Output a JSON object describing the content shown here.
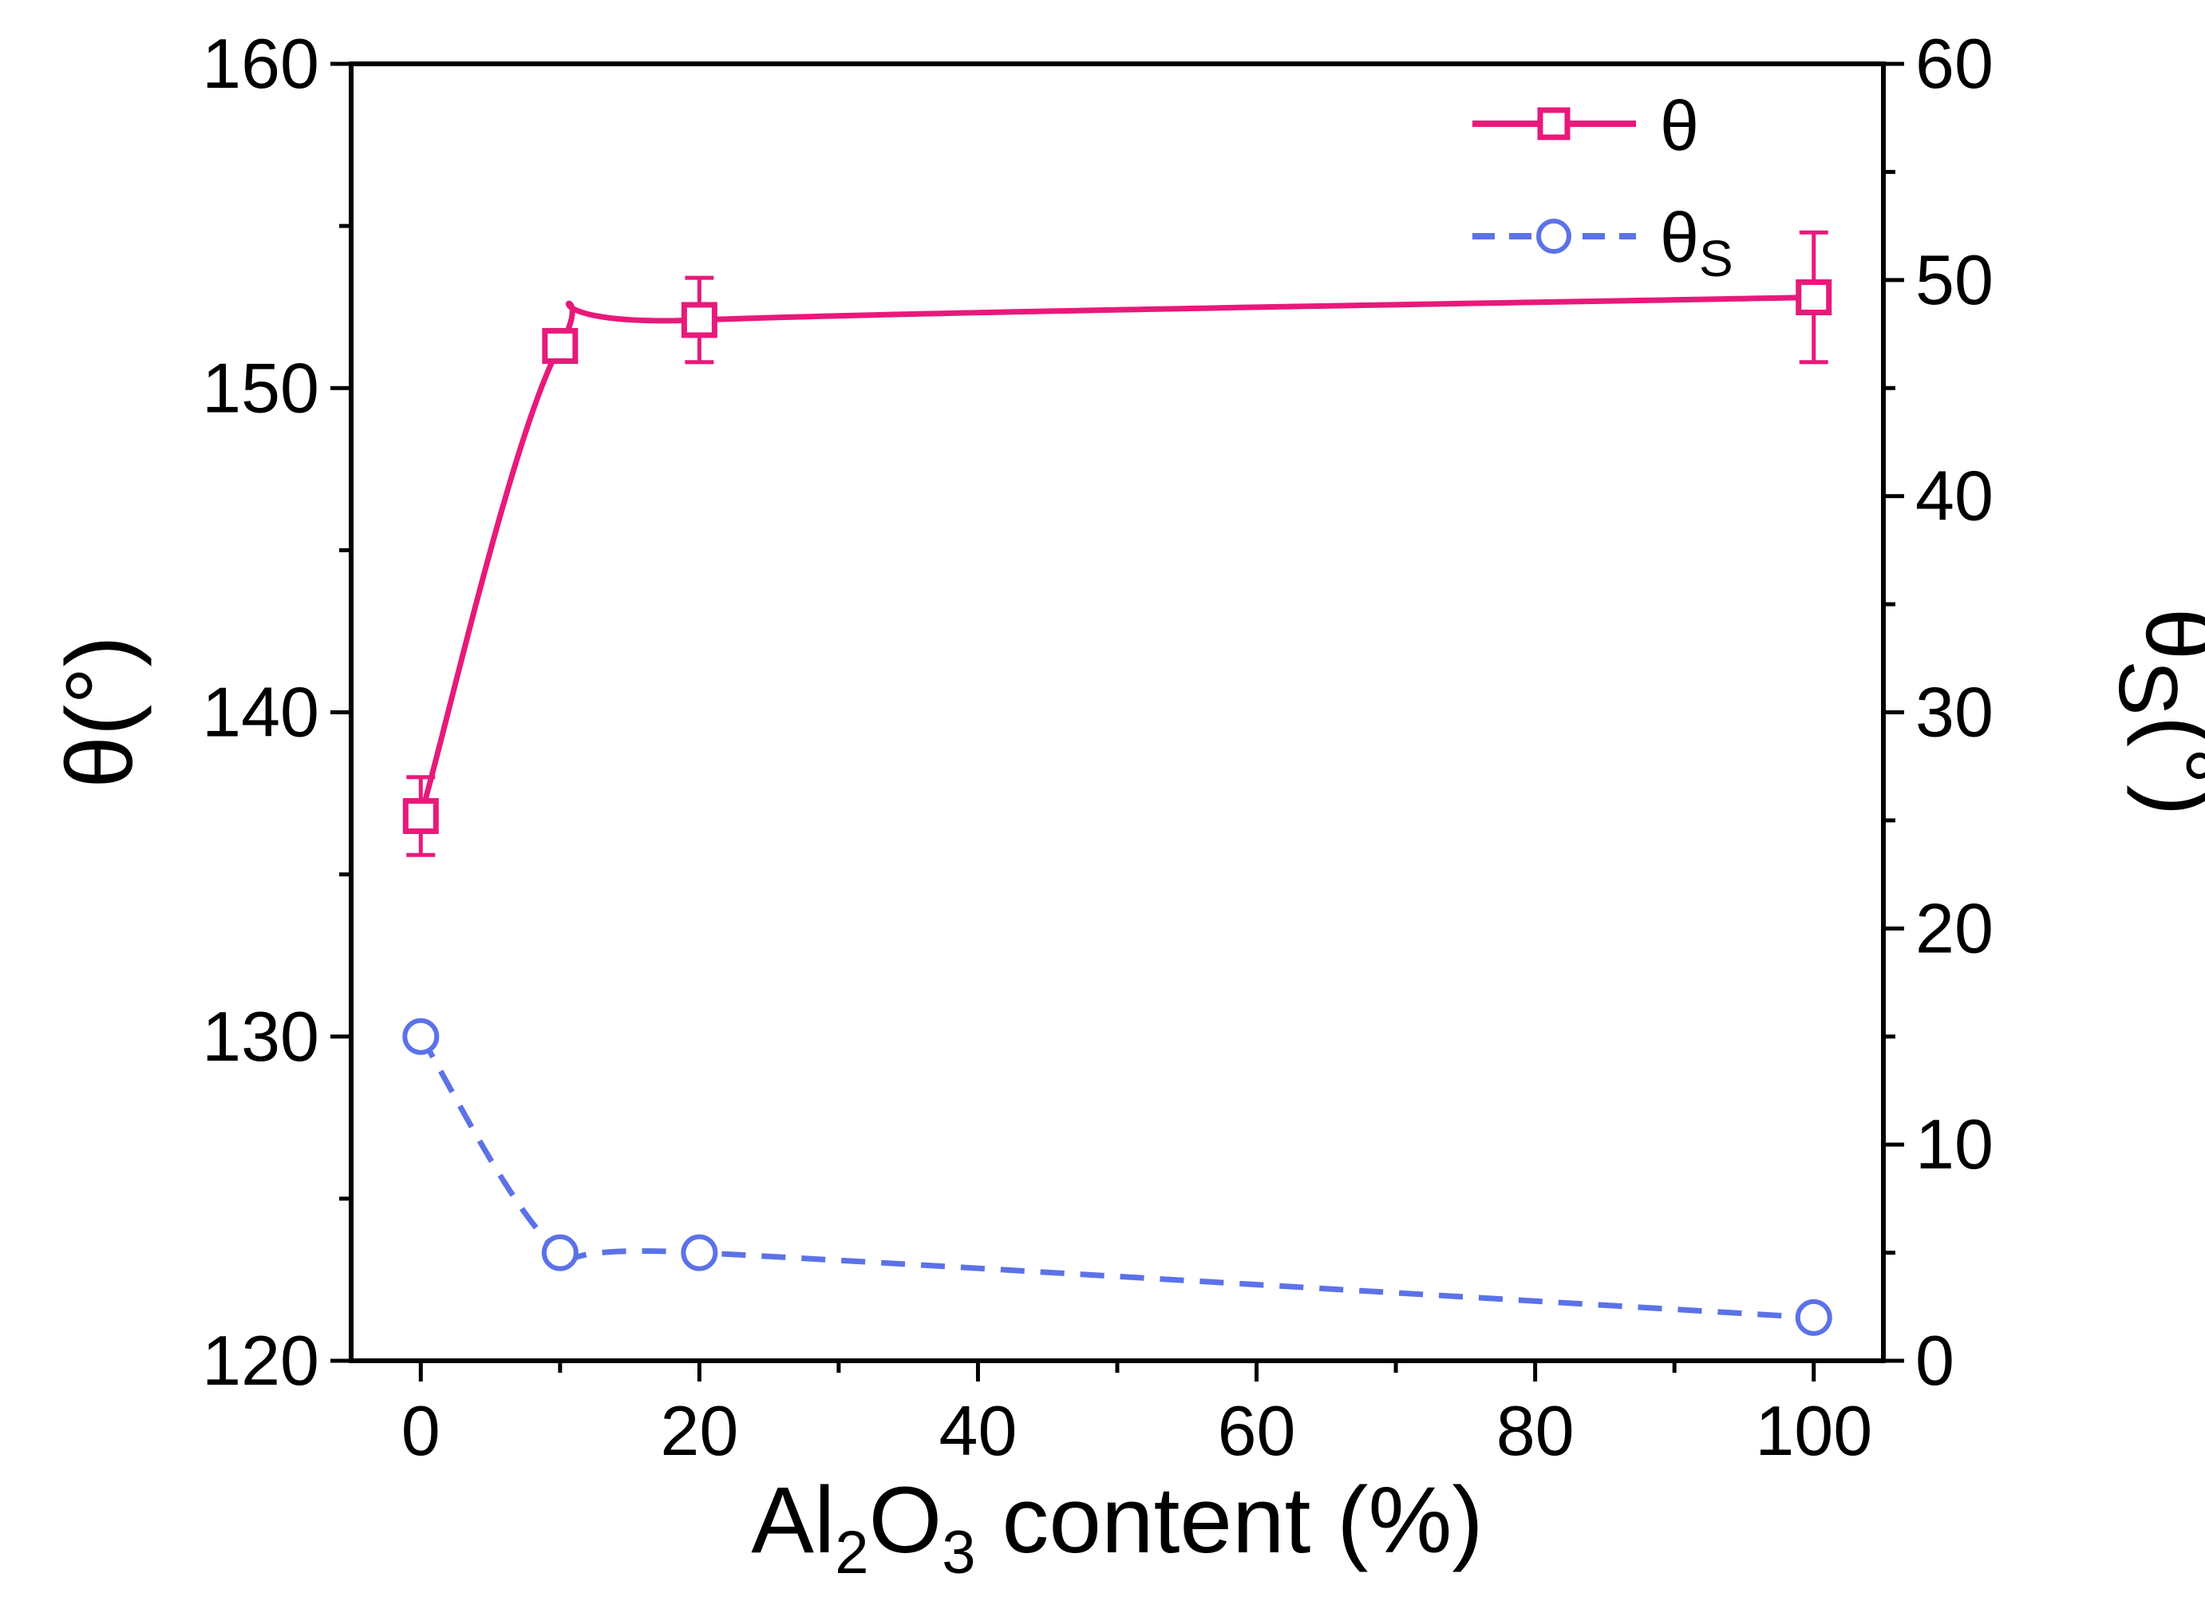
{
  "chart_data": {
    "type": "line",
    "title": "",
    "x": [
      0,
      10,
      20,
      100
    ],
    "xlim": [
      -5,
      105
    ],
    "xticks": [
      0,
      20,
      40,
      60,
      80,
      100
    ],
    "xlabel": {
      "prefix": "Al",
      "sub1": "2",
      "mid": "O",
      "sub2": "3",
      "suffix": " content (%)"
    },
    "ylabel_left": {
      "main": "θ",
      "suffix": "(°)"
    },
    "ylabel_right": {
      "main": "θ",
      "sub": "S",
      "suffix": "(°)"
    },
    "ylim_left": [
      120,
      160
    ],
    "yticks_left": [
      120,
      130,
      140,
      150,
      160
    ],
    "ylim_right": [
      0,
      60
    ],
    "yticks_right": [
      0,
      10,
      20,
      30,
      40,
      50,
      60
    ],
    "series": [
      {
        "name": "θ",
        "axis": "left",
        "values": [
          136.8,
          151.3,
          152.1,
          152.8
        ],
        "errors": [
          1.2,
          0.3,
          1.3,
          2.0
        ],
        "color": "#e8197a",
        "marker": "square",
        "line": "solid"
      },
      {
        "name": "θs",
        "axis": "right",
        "values": [
          15,
          5,
          5,
          2
        ],
        "color": "#5b72e8",
        "marker": "circle",
        "line": "dashed"
      }
    ],
    "legend": [
      {
        "main": "θ",
        "sub": ""
      },
      {
        "main": "θ",
        "sub": "S"
      }
    ],
    "legend_position": "top-right"
  }
}
